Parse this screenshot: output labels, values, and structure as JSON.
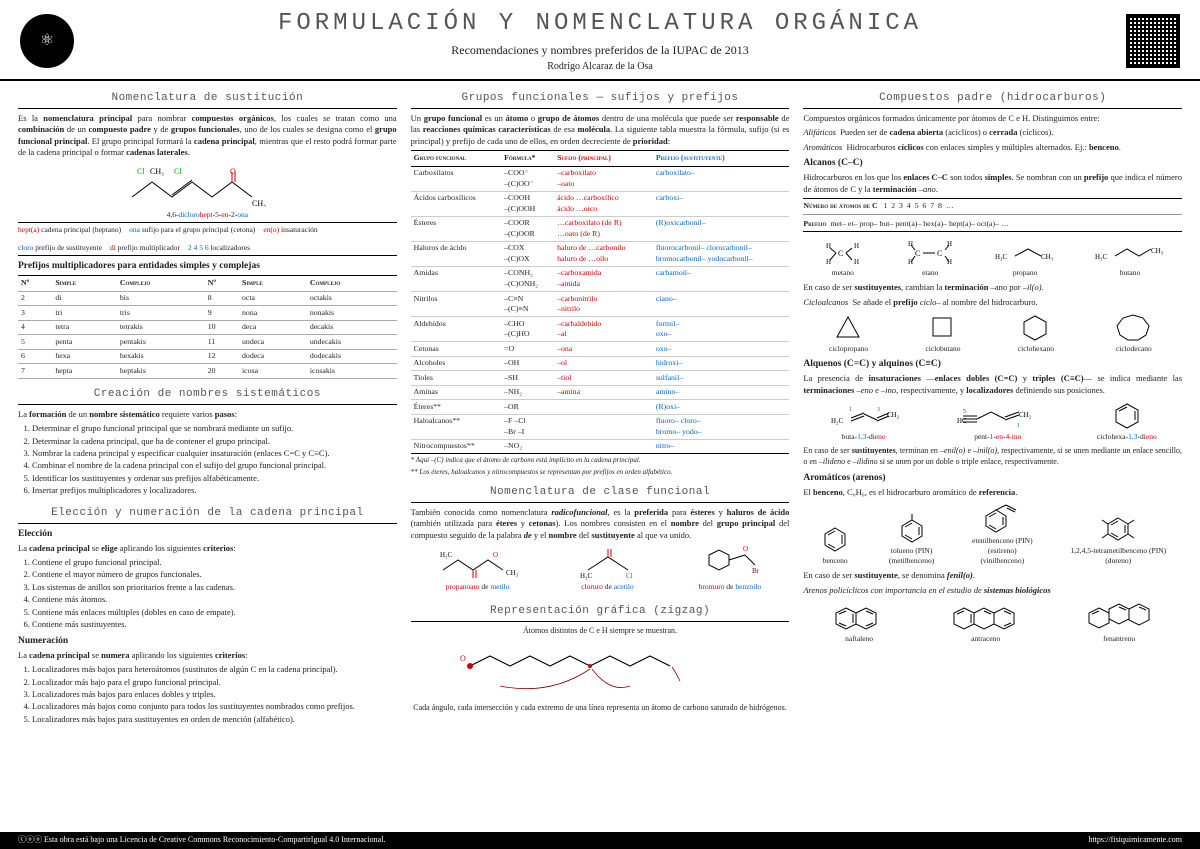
{
  "header": {
    "title": "Formulación y Nomenclatura Orgánica",
    "subtitle": "Recomendaciones y nombres preferidos de la IUPAC de 2013",
    "author": "Rodrigo Alcaraz de la Osa"
  },
  "col1": {
    "s1": {
      "h": "Nomenclatura de sustitución",
      "p": "Es la nomenclatura principal para nombrar compuestos orgánicos, los cuales se tratan como una combinación de un compuesto padre y de grupos funcionales, uno de los cuales se designa como el grupo funcional principal. El grupo principal formará la cadena principal, mientras que el resto podrá formar parte de la cadena principal o formar cadenas laterales.",
      "skeleton_caption": "4,6-diclorohept-5-en-2-ona",
      "legend": [
        {
          "k": "hept(a)",
          "v": "cadena principal (heptano)",
          "c": "red"
        },
        {
          "k": "en(o)",
          "v": "insaturación",
          "c": "red"
        },
        {
          "k": "di",
          "v": "prefijo multiplicador",
          "c": "red"
        },
        {
          "k": "ona",
          "v": "sufijo para el grupo principal (cetona)",
          "c": "blue"
        },
        {
          "k": "cloro",
          "v": "prefijo de sustituyente",
          "c": "blue"
        },
        {
          "k": "2 4 5 6",
          "v": "localizadores",
          "c": "blue"
        }
      ],
      "mult_h": "Prefijos multiplicadores para entidades simples y complejas",
      "mult_cols": [
        "Nº",
        "Simple",
        "Complejo",
        "Nº",
        "Simple",
        "Complejo"
      ],
      "mult_rows": [
        [
          "2",
          "di",
          "bis",
          "8",
          "octa",
          "octakis"
        ],
        [
          "3",
          "tri",
          "tris",
          "9",
          "nona",
          "nonakis"
        ],
        [
          "4",
          "tetra",
          "tetrakis",
          "10",
          "deca",
          "decakis"
        ],
        [
          "5",
          "penta",
          "pentakis",
          "11",
          "undeca",
          "undecakis"
        ],
        [
          "6",
          "hexa",
          "hexakis",
          "12",
          "dodeca",
          "dodecakis"
        ],
        [
          "7",
          "hepta",
          "heptakis",
          "20",
          "icosa",
          "icosakis"
        ]
      ]
    },
    "s2": {
      "h": "Creación de nombres sistemáticos",
      "intro": "La formación de un nombre sistemático requiere varios pasos:",
      "steps": [
        "Determinar el grupo funcional principal que se nombrará mediante un sufijo.",
        "Determinar la cadena principal, que ha de contener el grupo principal.",
        "Nombrar la cadena principal y especificar cualquier insaturación (enlaces C=C y C≡C).",
        "Combinar el nombre de la cadena principal con el sufijo del grupo funcional principal.",
        "Identificar los sustituyentes y ordenar sus prefijos alfabéticamente.",
        "Insertar prefijos multiplicadores y localizadores."
      ]
    },
    "s3": {
      "h": "Elección y numeración de la cadena principal",
      "elec_h": "Elección",
      "elec_intro": "La cadena principal se elige aplicando los siguientes criterios:",
      "elec": [
        "Contiene el grupo funcional principal.",
        "Contiene el mayor número de grupos funcionales.",
        "Los sistemas de anillos son prioritarios frente a las cadenas.",
        "Contiene más átomos.",
        "Contiene más enlaces múltiples (dobles en caso de empate).",
        "Contiene más sustituyentes."
      ],
      "num_h": "Numeración",
      "num_intro": "La cadena principal se numera aplicando los siguientes criterios:",
      "num": [
        "Localizadores más bajos para heteroátomos (sustitutos de algún C en la cadena principal).",
        "Localizador más bajo para el grupo funcional principal.",
        "Localizadores más bajos para enlaces dobles y triples.",
        "Localizadores más bajos como conjunto para todos los sustituyentes nombrados como prefijos.",
        "Localizadores más bajos para sustituyentes en orden de mención (alfabético)."
      ]
    }
  },
  "col2": {
    "s1": {
      "h": "Grupos funcionales — sufijos y prefijos",
      "p": "Un grupo funcional es un átomo o grupo de átomos dentro de una molécula que puede ser responsable de las reacciones químicas características de esa molécula. La siguiente tabla muestra la fórmula, sufijo (si es principal) y prefijo de cada uno de ellos, en orden decreciente de prioridad:",
      "cols": [
        "Grupo funcional",
        "Fórmula*",
        "Sufijo (principal)",
        "Prefijo (sustituyente)"
      ],
      "rows": [
        [
          "Carboxilatos",
          "–COO⁻\n–(C)OO⁻",
          "–carboxilato\n–oato",
          "carboxilato–"
        ],
        [
          "Ácidos carboxílicos",
          "–COOH\n–(C)OOH",
          "ácido …carboxílico\nácido …oico",
          "carboxi–"
        ],
        [
          "Ésteres",
          "–COOR\n–(C)OOR",
          "…carboxilato (de R)\n…oato (de R)",
          "(R)oxicarbonil–"
        ],
        [
          "Haluros de ácido",
          "–COX\n–(C)OX",
          "haluro de …carbonilo\nhaluro de …oilo",
          "fluorocarbonil– clorocarbonil–\nbromocarbonil– yodocarbonil–"
        ],
        [
          "Amidas",
          "–CONH₂\n–(C)ONH₂",
          "–carboxamida\n–amida",
          "carbamoil–"
        ],
        [
          "Nitrilos",
          "–C≡N\n–(C)≡N",
          "–carbonitrilo\n–nitrilo",
          "ciano–"
        ],
        [
          "Aldehídos",
          "–CHO\n–(C)HO",
          "–carbaldehído\n–al",
          "formil–\noxo–"
        ],
        [
          "Cetonas",
          "=O",
          "–ona",
          "oxo–"
        ],
        [
          "Alcoholes",
          "–OH",
          "–ol",
          "hidroxi–"
        ],
        [
          "Tioles",
          "–SH",
          "–tiol",
          "sulfanil–"
        ],
        [
          "Aminas",
          "–NH₂",
          "–amina",
          "amino–"
        ],
        [
          "Éteres**",
          "–OR",
          "",
          "(R)oxi–"
        ],
        [
          "Haloalcanos**",
          "–F –Cl\n–Br –I",
          "",
          "fluoro– cloro–\nbromo– yodo–"
        ],
        [
          "Nitrocompuestos**",
          "–NO₂",
          "",
          "nitro–"
        ]
      ],
      "note1": "* Aquí –(C) indica que el átomo de carbono está implícito en la cadena principal.",
      "note2": "** Los éteres, haloalcanos y nitrocompuestos se representan por prefijos en orden alfabético."
    },
    "s2": {
      "h": "Nomenclatura de clase funcional",
      "p": "También conocida como nomenclatura radicofuncional, es la preferida para ésteres y haluros de ácido (también utilizada para éteres y cetonas). Los nombres consisten en el nombre del grupo principal del compuesto seguido de la palabra de y el nombre del sustituyente al que va unido.",
      "ex": [
        "propanoato de metilo",
        "cloruro de acetilo",
        "bromuro de benzoilo"
      ]
    },
    "s3": {
      "h": "Representación gráfica (zigzag)",
      "l1": "Átomos distintos de C e H siempre se muestran.",
      "l2": "Cada ángulo, cada intersección y cada extremo de una línea representa un átomo de carbono saturado de hidrógenos."
    }
  },
  "col3": {
    "s1": {
      "h": "Compuestos padre (hidrocarburos)",
      "intro": "Compuestos orgánicos formados únicamente por átomos de C e H. Distinguimos entre:",
      "alif": "Alifáticos  Pueden ser de cadena abierta (acíclicos) o cerrada (cíclicos).",
      "arom": "Aromáticos  Hidrocarburos cíclicos con enlaces simples y múltiples alternados. Ej.: benceno.",
      "alc_h": "Alcanos (C–C)",
      "alc_p": "Hidrocarburos en los que los enlaces C–C son todos simples. Se nombran con un prefijo que indica el número de átomos de C y la terminación –ano.",
      "nums": [
        "1",
        "2",
        "3",
        "4",
        "5",
        "6",
        "7",
        "8",
        "…"
      ],
      "prefs": [
        "met–",
        "et–",
        "prop–",
        "but–",
        "pent(a)–",
        "hex(a)–",
        "hept(a)–",
        "oct(a)–",
        "…"
      ],
      "alk_ex": [
        "metano",
        "etano",
        "propano",
        "butano"
      ],
      "sust": "En caso de ser sustituyentes, cambian la terminación –ano por –il(o).",
      "ciclo": "Cicloalcanos  Se añade el prefijo ciclo– al nombre del hidrocarburo.",
      "ciclo_ex": [
        "ciclopropano",
        "ciclobutano",
        "ciclohexano",
        "ciclodecano"
      ],
      "alq_h": "Alquenos (C=C) y alquinos (C≡C)",
      "alq_p": "La presencia de insaturaciones —enlaces dobles (C=C) y triples (C≡C)— se indica mediante las terminaciones –eno e –ino, respectivamente, y localizadores definiendo sus posiciones.",
      "alq_ex": [
        "buta-1,3-dieno",
        "pent-1-en-4-ino",
        "ciclohexa-1,3-dieno"
      ],
      "alq_sust": "En caso de ser sustituyentes, terminan en –enil(o) e –inil(o), respectivamente, si se unen mediante un enlace sencillo, o en –ilideno e –ilidino si se unen por un doble o triple enlace, respectivamente.",
      "arom_h": "Aromáticos (arenos)",
      "arom_p": "El benceno, C₆H₆, es el hidrocarburo aromático de referencia.",
      "arom_ex": [
        "benceno",
        "tolueno (PIN)\n(metilbenceno)",
        "etenilbenceno (PIN)\n(estireno)\n(vinilbenceno)",
        "1,2,4,5-tetrametilbenceno (PIN)\n(dureno)"
      ],
      "arom_sust": "En caso de ser sustituyente, se denomina fenil(o).",
      "poly": "Arenos policíclicos con importancia en el estudio de sistemas biológicos",
      "poly_ex": [
        "naftaleno",
        "antraceno",
        "fenantreno"
      ]
    }
  },
  "footer": {
    "license": "Esta obra está bajo una Licencia de Creative Commons Reconocimiento-CompartirIgual 4.0 Internacional.",
    "url": "https://fisiquimicamente.com"
  },
  "colors": {
    "red": "#c00000",
    "blue": "#0066cc",
    "gray": "#555"
  }
}
